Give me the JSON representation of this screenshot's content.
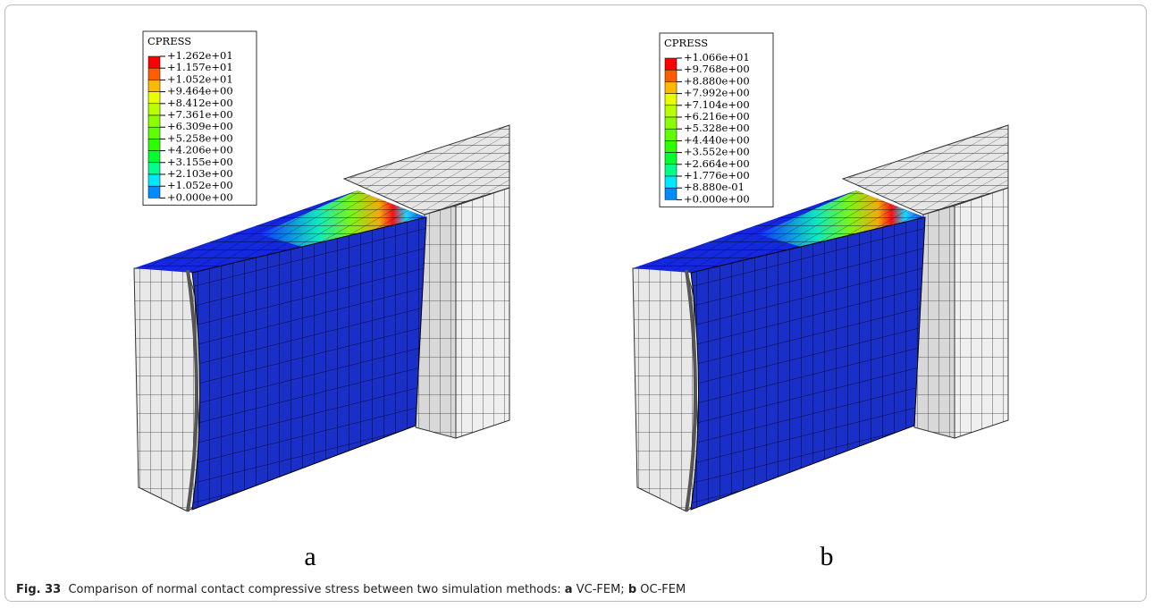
{
  "panels": [
    {
      "legend": {
        "title": "CPRESS",
        "labels": [
          "+1.262e+01",
          "+1.157e+01",
          "+1.052e+01",
          "+9.464e+00",
          "+8.412e+00",
          "+7.361e+00",
          "+6.309e+00",
          "+5.258e+00",
          "+4.206e+00",
          "+3.155e+00",
          "+2.103e+00",
          "+1.052e+00",
          "+0.000e+00"
        ]
      },
      "label": "a"
    },
    {
      "legend": {
        "title": "CPRESS",
        "labels": [
          "+1.066e+01",
          "+9.768e+00",
          "+8.880e+00",
          "+7.992e+00",
          "+7.104e+00",
          "+6.216e+00",
          "+5.328e+00",
          "+4.440e+00",
          "+3.552e+00",
          "+2.664e+00",
          "+1.776e+00",
          "+8.880e-01",
          "+0.000e+00"
        ]
      },
      "label": "b"
    }
  ],
  "caption": {
    "label": "Fig. 33",
    "text": "Comparison of normal contact compressive stress between two simulation methods:",
    "items": [
      {
        "label": "a",
        "text": "VC-FEM;"
      },
      {
        "label": "b",
        "text": "OC-FEM"
      }
    ]
  }
}
